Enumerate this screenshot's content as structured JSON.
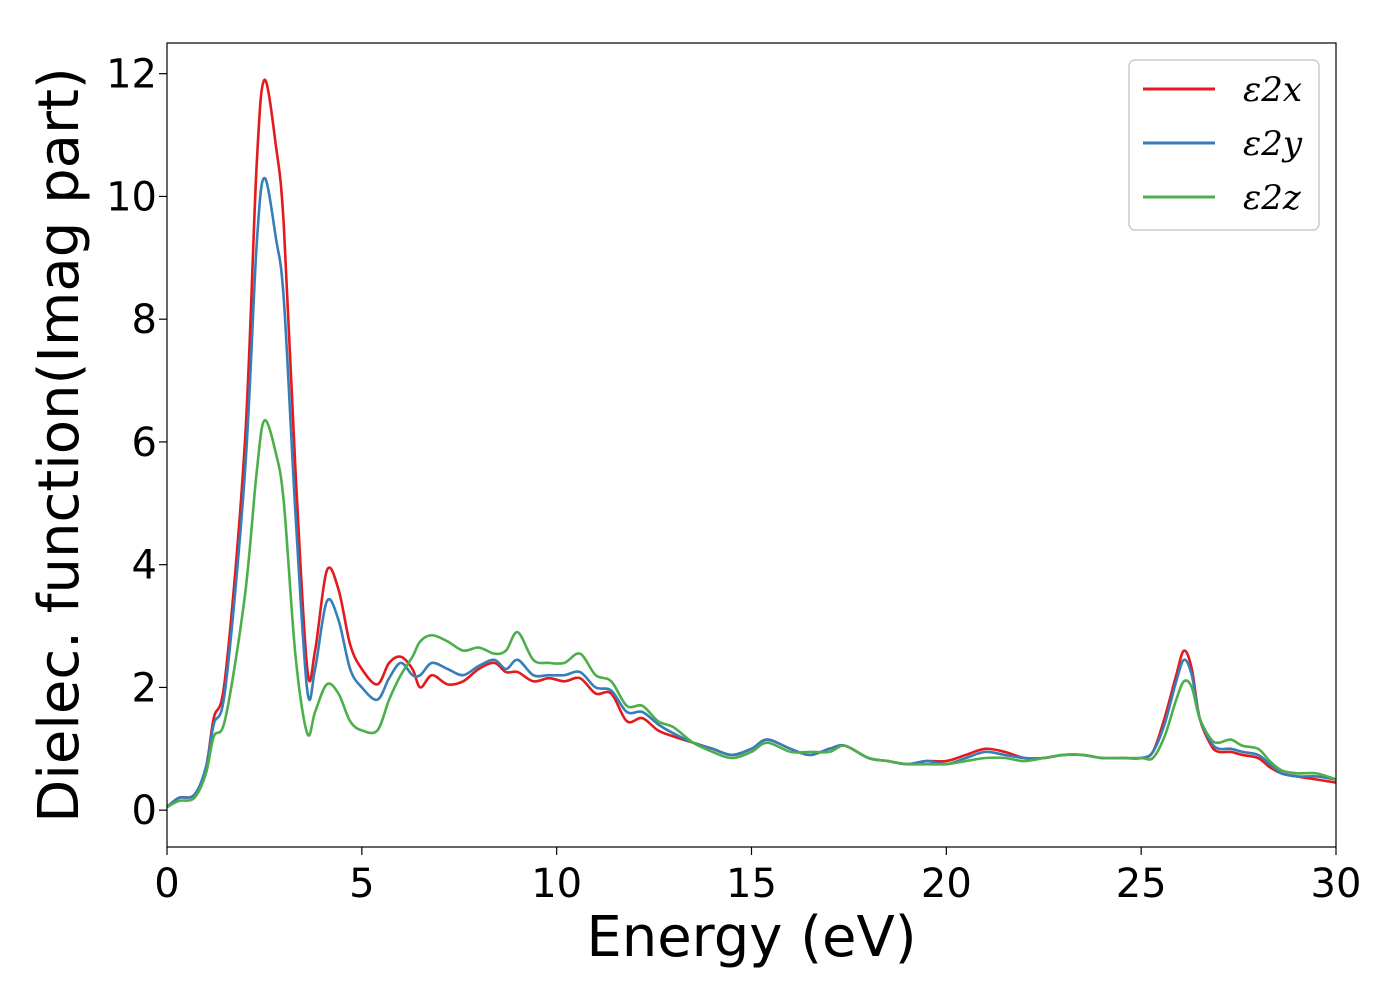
{
  "chart_data": {
    "type": "line",
    "xlabel": "Energy (eV)",
    "ylabel": "Dielec. function(Imag part)",
    "xlim": [
      0,
      30
    ],
    "ylim": [
      -0.6,
      12.5
    ],
    "xticks": [
      "0",
      "5",
      "10",
      "15",
      "20",
      "25",
      "30"
    ],
    "yticks": [
      "0",
      "2",
      "4",
      "6",
      "8",
      "10",
      "12"
    ],
    "grid": false,
    "legend_position": "top-right",
    "x": [
      0,
      0.3,
      0.7,
      1.0,
      1.2,
      1.5,
      2.0,
      2.3,
      2.5,
      2.8,
      3.0,
      3.3,
      3.6,
      3.8,
      4.1,
      4.4,
      4.7,
      5.0,
      5.4,
      5.7,
      6.0,
      6.3,
      6.5,
      6.8,
      7.2,
      7.6,
      8.0,
      8.4,
      8.7,
      9.0,
      9.4,
      9.8,
      10.2,
      10.6,
      11.0,
      11.4,
      11.8,
      12.2,
      12.6,
      13.0,
      13.5,
      14.0,
      14.5,
      15.0,
      15.4,
      16.0,
      16.5,
      17.0,
      17.4,
      18.0,
      18.5,
      19.0,
      19.5,
      20.0,
      20.5,
      21.0,
      21.5,
      22.0,
      22.5,
      23.0,
      23.5,
      24.0,
      24.5,
      25.0,
      25.3,
      25.6,
      25.9,
      26.1,
      26.3,
      26.5,
      26.8,
      27.0,
      27.3,
      27.6,
      28.0,
      28.3,
      28.6,
      29.0,
      29.5,
      30.0
    ],
    "series": [
      {
        "name": "ε2x",
        "color": "#e41a1c",
        "values": [
          0.05,
          0.2,
          0.25,
          0.7,
          1.5,
          2.2,
          6.0,
          10.5,
          11.9,
          10.8,
          9.5,
          5.5,
          2.3,
          2.6,
          3.9,
          3.6,
          2.7,
          2.3,
          2.05,
          2.4,
          2.5,
          2.3,
          2.0,
          2.2,
          2.05,
          2.1,
          2.3,
          2.4,
          2.25,
          2.25,
          2.1,
          2.15,
          2.1,
          2.15,
          1.9,
          1.9,
          1.45,
          1.5,
          1.3,
          1.2,
          1.1,
          1.0,
          0.9,
          1.0,
          1.15,
          1.0,
          0.9,
          1.0,
          1.05,
          0.85,
          0.8,
          0.75,
          0.8,
          0.8,
          0.9,
          1.0,
          0.95,
          0.85,
          0.85,
          0.9,
          0.9,
          0.85,
          0.85,
          0.85,
          0.95,
          1.5,
          2.2,
          2.6,
          2.3,
          1.5,
          1.05,
          0.95,
          0.95,
          0.9,
          0.85,
          0.7,
          0.6,
          0.55,
          0.5,
          0.45
        ]
      },
      {
        "name": "ε2y",
        "color": "#377eb8",
        "values": [
          0.05,
          0.2,
          0.25,
          0.7,
          1.4,
          2.0,
          5.5,
          9.2,
          10.3,
          9.3,
          8.3,
          4.8,
          1.95,
          2.3,
          3.4,
          3.1,
          2.3,
          2.0,
          1.8,
          2.15,
          2.4,
          2.2,
          2.2,
          2.4,
          2.3,
          2.2,
          2.35,
          2.45,
          2.3,
          2.45,
          2.2,
          2.2,
          2.2,
          2.25,
          2.0,
          1.95,
          1.6,
          1.6,
          1.4,
          1.25,
          1.1,
          1.0,
          0.9,
          1.0,
          1.15,
          1.0,
          0.9,
          1.0,
          1.05,
          0.85,
          0.8,
          0.75,
          0.8,
          0.75,
          0.85,
          0.95,
          0.9,
          0.85,
          0.85,
          0.9,
          0.9,
          0.85,
          0.85,
          0.85,
          0.95,
          1.4,
          2.1,
          2.45,
          2.2,
          1.5,
          1.1,
          1.0,
          1.0,
          0.95,
          0.9,
          0.75,
          0.6,
          0.55,
          0.55,
          0.5
        ]
      },
      {
        "name": "ε2z",
        "color": "#4daf4a",
        "values": [
          0.05,
          0.15,
          0.2,
          0.6,
          1.2,
          1.5,
          3.5,
          5.5,
          6.35,
          5.8,
          5.0,
          2.5,
          1.25,
          1.6,
          2.05,
          1.9,
          1.45,
          1.3,
          1.3,
          1.8,
          2.2,
          2.5,
          2.75,
          2.85,
          2.75,
          2.6,
          2.65,
          2.55,
          2.6,
          2.9,
          2.45,
          2.4,
          2.4,
          2.55,
          2.2,
          2.1,
          1.7,
          1.7,
          1.45,
          1.35,
          1.1,
          0.95,
          0.85,
          0.95,
          1.1,
          0.95,
          0.95,
          0.95,
          1.05,
          0.85,
          0.8,
          0.75,
          0.75,
          0.75,
          0.8,
          0.85,
          0.85,
          0.8,
          0.85,
          0.9,
          0.9,
          0.85,
          0.85,
          0.85,
          0.85,
          1.2,
          1.8,
          2.1,
          2.0,
          1.5,
          1.15,
          1.1,
          1.15,
          1.05,
          1.0,
          0.8,
          0.65,
          0.6,
          0.6,
          0.5
        ]
      }
    ]
  }
}
